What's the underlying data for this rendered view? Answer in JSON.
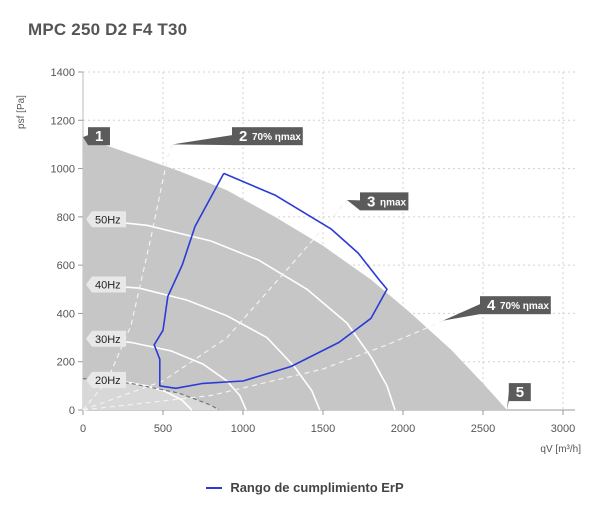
{
  "chart_data": {
    "type": "line",
    "title": "MPC 250 D2 F4 T30",
    "ylabel": "psf [Pa]",
    "xlabel": "qV [m³/h]",
    "xlim": [
      0,
      3000
    ],
    "ylim": [
      0,
      1400
    ],
    "x_ticks": [
      "0",
      "500",
      "1000",
      "1500",
      "2000",
      "2500",
      "3000"
    ],
    "y_ticks": [
      "0",
      "200",
      "400",
      "600",
      "800",
      "1000",
      "1200",
      "1400"
    ],
    "grid": true,
    "operating_area": [
      [
        0,
        1130
      ],
      [
        300,
        1060
      ],
      [
        600,
        990
      ],
      [
        900,
        910
      ],
      [
        1200,
        800
      ],
      [
        1500,
        680
      ],
      [
        1800,
        540
      ],
      [
        2050,
        400
      ],
      [
        2300,
        250
      ],
      [
        2500,
        110
      ],
      [
        2650,
        0
      ],
      [
        0,
        0
      ]
    ],
    "speed_curves": [
      {
        "label": "50Hz",
        "points": [
          [
            50,
            790
          ],
          [
            400,
            765
          ],
          [
            800,
            700
          ],
          [
            1100,
            620
          ],
          [
            1400,
            500
          ],
          [
            1650,
            360
          ],
          [
            1800,
            220
          ],
          [
            1900,
            100
          ],
          [
            1950,
            0
          ]
        ]
      },
      {
        "label": "40Hz",
        "points": [
          [
            50,
            520
          ],
          [
            350,
            505
          ],
          [
            650,
            455
          ],
          [
            900,
            390
          ],
          [
            1150,
            300
          ],
          [
            1320,
            180
          ],
          [
            1430,
            80
          ],
          [
            1480,
            0
          ]
        ]
      },
      {
        "label": "30Hz",
        "points": [
          [
            50,
            295
          ],
          [
            300,
            280
          ],
          [
            550,
            245
          ],
          [
            750,
            190
          ],
          [
            900,
            120
          ],
          [
            980,
            60
          ],
          [
            1020,
            0
          ]
        ]
      },
      {
        "label": "20Hz",
        "points": [
          [
            50,
            125
          ],
          [
            250,
            118
          ],
          [
            400,
            100
          ],
          [
            520,
            75
          ],
          [
            620,
            40
          ],
          [
            680,
            0
          ]
        ]
      }
    ],
    "efficiency_curves": [
      {
        "label": "70% ηmax",
        "points": [
          [
            0,
            0
          ],
          [
            150,
            120
          ],
          [
            300,
            350
          ],
          [
            420,
            700
          ],
          [
            530,
            1050
          ],
          [
            560,
            1100
          ]
        ]
      },
      {
        "label": "ηmax",
        "points": [
          [
            0,
            0
          ],
          [
            500,
            120
          ],
          [
            900,
            300
          ],
          [
            1300,
            600
          ],
          [
            1550,
            790
          ],
          [
            1650,
            870
          ]
        ]
      },
      {
        "label": "70% ηmax",
        "points": [
          [
            0,
            0
          ],
          [
            800,
            60
          ],
          [
            1500,
            170
          ],
          [
            1900,
            270
          ],
          [
            2150,
            340
          ],
          [
            2250,
            370
          ]
        ]
      }
    ],
    "low_curve": {
      "points": [
        [
          0,
          130
        ],
        [
          300,
          110
        ],
        [
          600,
          70
        ],
        [
          800,
          20
        ],
        [
          850,
          0
        ]
      ]
    },
    "series": [
      {
        "name": "Rango de cumplimiento ErP",
        "color": "#2b3bd6",
        "points": [
          [
            880,
            980
          ],
          [
            700,
            760
          ],
          [
            620,
            600
          ],
          [
            530,
            470
          ],
          [
            500,
            330
          ],
          [
            445,
            270
          ],
          [
            480,
            210
          ],
          [
            480,
            100
          ],
          [
            580,
            90
          ],
          [
            750,
            110
          ],
          [
            1000,
            120
          ],
          [
            1300,
            180
          ],
          [
            1600,
            280
          ],
          [
            1800,
            380
          ],
          [
            1900,
            500
          ],
          [
            1850,
            540
          ],
          [
            1720,
            650
          ],
          [
            1550,
            750
          ],
          [
            1200,
            890
          ],
          [
            880,
            980
          ]
        ]
      }
    ],
    "markers": [
      {
        "num": "1",
        "text": "",
        "at": [
          0,
          1130
        ],
        "box": [
          100,
          1130
        ]
      },
      {
        "num": "2",
        "text": "70% ηmax",
        "at": [
          560,
          1100
        ],
        "box": [
          1000,
          1130
        ]
      },
      {
        "num": "3",
        "text": "ηmax",
        "at": [
          1650,
          870
        ],
        "box": [
          1800,
          860
        ]
      },
      {
        "num": "4",
        "text": "70% ηmax",
        "at": [
          2250,
          370
        ],
        "box": [
          2550,
          430
        ]
      },
      {
        "num": "5",
        "text": "",
        "at": [
          2650,
          0
        ],
        "box": [
          2730,
          70
        ]
      }
    ],
    "legend": {
      "position": "bottom-center"
    }
  }
}
